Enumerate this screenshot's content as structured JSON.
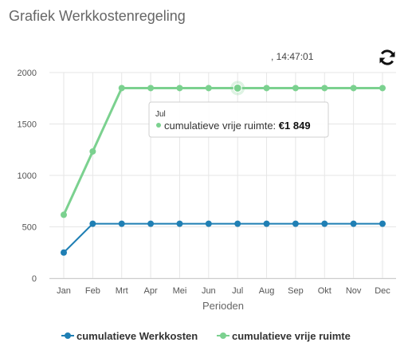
{
  "page": {
    "title": "Grafiek Werkkostenregeling",
    "timestamp": ", 14:47:01"
  },
  "icons": {
    "refresh": "refresh-icon"
  },
  "colors": {
    "werkkosten": "#1f7fb4",
    "vrije_ruimte": "#7bd18f",
    "grid": "#e6e6e6"
  },
  "tooltip": {
    "header": "Jul",
    "series_label": "cumulatieve vrije ruimte: ",
    "value": "€1 849"
  },
  "chart_data": {
    "type": "line",
    "title": "",
    "xlabel": "Perioden",
    "ylabel": "",
    "ylim": [
      0,
      2000
    ],
    "yticks": [
      0,
      500,
      1000,
      1500,
      2000
    ],
    "categories": [
      "Jan",
      "Feb",
      "Mrt",
      "Apr",
      "Mei",
      "Jun",
      "Jul",
      "Aug",
      "Sep",
      "Okt",
      "Nov",
      "Dec"
    ],
    "series": [
      {
        "name": "cumulatieve Werkkosten",
        "values": [
          250,
          530,
          530,
          530,
          530,
          530,
          530,
          530,
          530,
          530,
          530,
          530
        ]
      },
      {
        "name": "cumulatieve vrije ruimte",
        "values": [
          617,
          1233,
          1849,
          1849,
          1849,
          1849,
          1849,
          1849,
          1849,
          1849,
          1849,
          1849
        ]
      }
    ],
    "highlight": {
      "series": 1,
      "index": 6
    },
    "grid": true,
    "legend": "bottom-center"
  }
}
